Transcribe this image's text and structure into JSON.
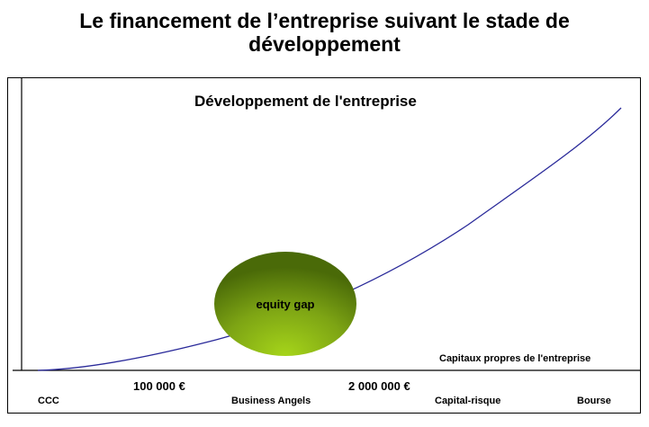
{
  "title": {
    "line1": "Le financement de l’entreprise suivant le stade de",
    "line2": "développement"
  },
  "diagram": {
    "curve_label": "Développement de l'entreprise",
    "x_axis_label": "Capitaux propres de l'entreprise",
    "thresholds": [
      "100 000 €",
      "2 000 000 €"
    ],
    "stages": [
      "CCC",
      "Business Angels",
      "Capital-risque",
      "Bourse"
    ],
    "gap_label": "equity gap",
    "colors": {
      "curve": "#2a2a9a",
      "gap_light": "#a6d51a",
      "gap_dark": "#4a6a08"
    }
  }
}
